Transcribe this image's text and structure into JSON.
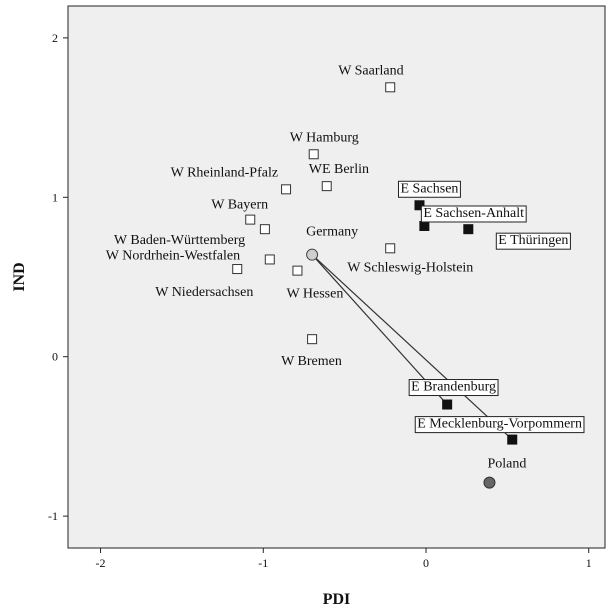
{
  "chart_data": {
    "type": "scatter",
    "xlabel": "PDI",
    "ylabel": "IND",
    "xlim": [
      -2.2,
      1.1
    ],
    "ylim": [
      -1.2,
      2.2
    ],
    "x_ticks": [
      -2,
      -1,
      0,
      1
    ],
    "y_ticks": [
      -1,
      0,
      1,
      2
    ],
    "grid": false,
    "background_color": "#efefef",
    "points": [
      {
        "label": "W Saarland",
        "x": -0.22,
        "y": 1.69,
        "marker": "open-square",
        "boxed": false
      },
      {
        "label": "W Hamburg",
        "x": -0.69,
        "y": 1.27,
        "marker": "open-square",
        "boxed": false
      },
      {
        "label": "WE Berlin",
        "x": -0.61,
        "y": 1.07,
        "marker": "open-square",
        "boxed": false
      },
      {
        "label": "W Rheinland-Pfalz",
        "x": -0.86,
        "y": 1.05,
        "marker": "open-square",
        "boxed": false
      },
      {
        "label": "W Bayern",
        "x": -1.08,
        "y": 0.86,
        "marker": "open-square",
        "boxed": false
      },
      {
        "label": "W Baden-Württemberg",
        "x": -0.99,
        "y": 0.8,
        "marker": "open-square",
        "boxed": false
      },
      {
        "label": "W Nordrhein-Westfalen",
        "x": -0.96,
        "y": 0.61,
        "marker": "open-square",
        "boxed": false
      },
      {
        "label": "W Niedersachsen",
        "x": -1.16,
        "y": 0.55,
        "marker": "open-square",
        "boxed": false
      },
      {
        "label": "W Hessen",
        "x": -0.79,
        "y": 0.54,
        "marker": "open-square",
        "boxed": false
      },
      {
        "label": "W Schleswig-Holstein",
        "x": -0.22,
        "y": 0.68,
        "marker": "open-square",
        "boxed": false
      },
      {
        "label": "W Bremen",
        "x": -0.7,
        "y": 0.11,
        "marker": "open-square",
        "boxed": false
      },
      {
        "label": "E Sachsen",
        "x": -0.04,
        "y": 0.95,
        "marker": "filled-square",
        "boxed": true
      },
      {
        "label": "E Sachsen-Anhalt",
        "x": -0.01,
        "y": 0.82,
        "marker": "filled-square",
        "boxed": true
      },
      {
        "label": "E Thüringen",
        "x": 0.26,
        "y": 0.8,
        "marker": "filled-square",
        "boxed": true
      },
      {
        "label": "E Brandenburg",
        "x": 0.13,
        "y": -0.3,
        "marker": "filled-square",
        "boxed": true
      },
      {
        "label": "E Mecklenburg-Vorpommern",
        "x": 0.53,
        "y": -0.52,
        "marker": "filled-square",
        "boxed": true
      },
      {
        "label": "Germany",
        "x": -0.7,
        "y": 0.64,
        "marker": "light-circle",
        "boxed": false
      },
      {
        "label": "Poland",
        "x": 0.39,
        "y": -0.79,
        "marker": "dark-circle",
        "boxed": false
      }
    ],
    "lines": [
      {
        "from": "Germany",
        "to": "E Brandenburg"
      },
      {
        "from": "Germany",
        "to": "E Mecklenburg-Vorpommern"
      }
    ]
  }
}
